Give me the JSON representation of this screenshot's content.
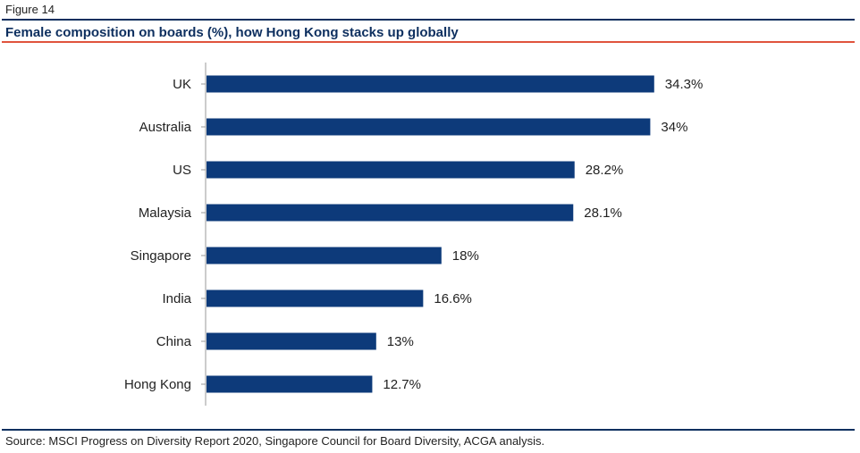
{
  "figure_label": "Figure 14",
  "title": "Female composition on boards (%), how Hong Kong stacks up globally",
  "source": "Source: MSCI Progress on Diversity Report 2020, Singapore Council for Board Diversity, ACGA analysis.",
  "colors": {
    "bar": "#0d3a7a",
    "rule_navy": "#0d2f5f",
    "rule_red": "#e0533d",
    "title": "#0d2f5f"
  },
  "chart_data": {
    "type": "bar",
    "orientation": "horizontal",
    "categories": [
      "UK",
      "Australia",
      "US",
      "Malaysia",
      "Singapore",
      "India",
      "China",
      "Hong Kong"
    ],
    "values": [
      34.3,
      34,
      28.2,
      28.1,
      18,
      16.6,
      13,
      12.7
    ],
    "value_labels": [
      "34.3%",
      "34%",
      "28.2%",
      "28.1%",
      "18%",
      "16.6%",
      "13%",
      "12.7%"
    ],
    "title": "Female composition on boards (%), how Hong Kong stacks up globally",
    "xlabel": "",
    "ylabel": "",
    "xlim": [
      0,
      35
    ],
    "grid": false,
    "legend": "none"
  }
}
